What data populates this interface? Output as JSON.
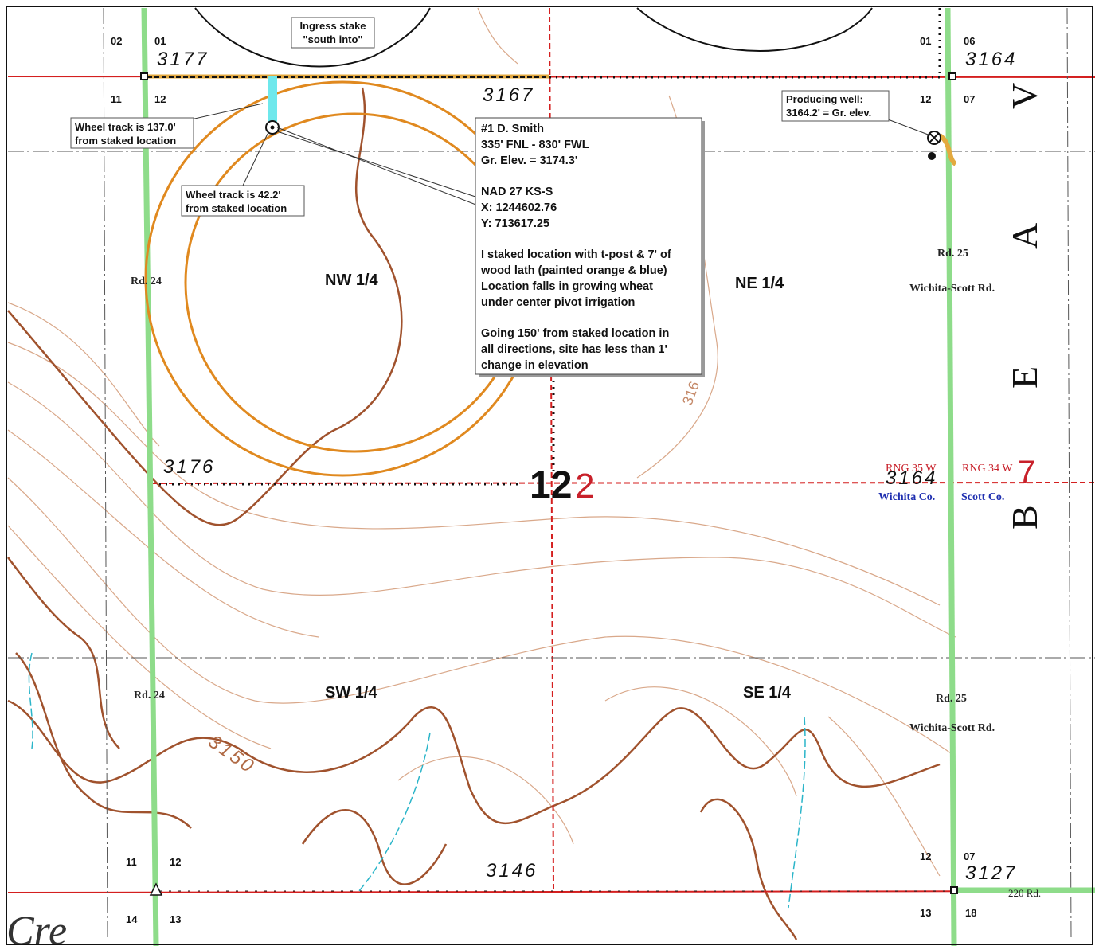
{
  "callouts": {
    "ingress": [
      "Ingress stake",
      "\"south into\""
    ],
    "wheel_track_a": [
      "Wheel track is 137.0'",
      "from staked location"
    ],
    "wheel_track_b": [
      "Wheel track is 42.2'",
      "from staked location"
    ],
    "producing_well": [
      "Producing well:",
      "3164.2' = Gr. elev."
    ]
  },
  "info_box": [
    "#1 D. Smith",
    "335' FNL - 830' FWL",
    "Gr. Elev. = 3174.3'",
    "NAD 27 KS-S",
    "X: 1244602.76",
    "Y: 713617.25",
    "I staked location with t-post & 7' of",
    "wood lath (painted orange & blue)",
    "Location falls in growing wheat",
    "under center pivot irrigation",
    "Going 150' from staked location in",
    "all directions, site has less than 1'",
    "change in elevation"
  ],
  "quarters": [
    "NW 1/4",
    "NE 1/4",
    "SW 1/4",
    "SE 1/4"
  ],
  "sections": {
    "top_left": [
      "02",
      "01",
      "11",
      "12"
    ],
    "top_right": [
      "01",
      "06",
      "12",
      "07"
    ],
    "bottom_left": [
      "11",
      "12",
      "14",
      "13"
    ],
    "bottom_right": [
      "12",
      "07",
      "13",
      "18"
    ],
    "center": "12",
    "center_red": "2",
    "right_red": "7"
  },
  "elevations": [
    "3177",
    "3167",
    "3164",
    "3176",
    "3164",
    "3146",
    "3127",
    "3150",
    "316"
  ],
  "roads": [
    "Rd. 24",
    "Rd. 24",
    "Rd. 25",
    "Wichita-Scott Rd.",
    "Rd. 25",
    "Wichita-Scott Rd.",
    "220 Rd."
  ],
  "boundaries": {
    "range_west": "RNG 35 W",
    "range_east": "RNG 34 W",
    "county_west": "Wichita Co.",
    "county_east": "Scott Co."
  },
  "river_letters": [
    "B",
    "E",
    "A",
    "V"
  ],
  "creek": "Cre"
}
